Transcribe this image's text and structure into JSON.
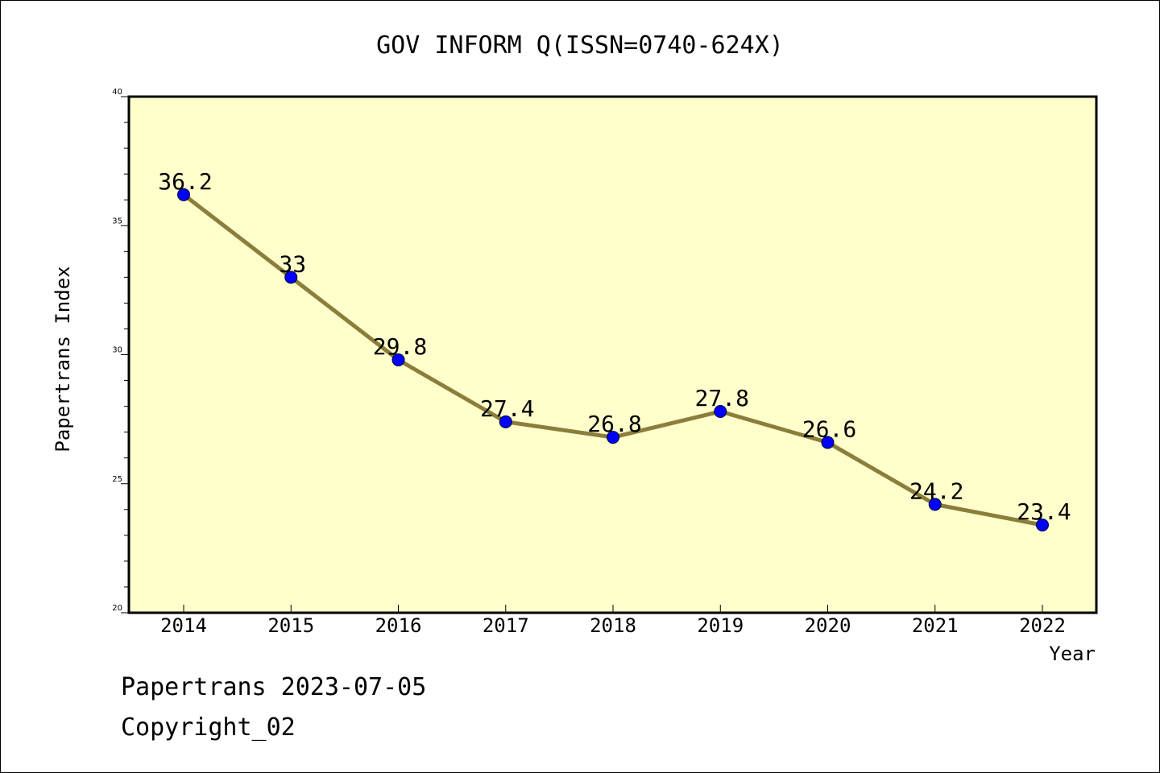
{
  "chart_data": {
    "type": "line",
    "title": "GOV INFORM Q(ISSN=0740-624X)",
    "xlabel": "Year",
    "ylabel": "Papertrans Index",
    "categories": [
      "2014",
      "2015",
      "2016",
      "2017",
      "2018",
      "2019",
      "2020",
      "2021",
      "2022"
    ],
    "series": [
      {
        "values": [
          36.2,
          33,
          29.8,
          27.4,
          26.8,
          27.8,
          26.6,
          24.2,
          23.4
        ],
        "data_labels": [
          "36.2",
          "33",
          "29.8",
          "27.4",
          "26.8",
          "27.8",
          "26.6",
          "24.2",
          "23.4"
        ]
      }
    ],
    "ylim": [
      20,
      40
    ],
    "y_ticks": [
      "20",
      "25",
      "30",
      "35",
      "40"
    ],
    "y_minor_step": 1,
    "grid": false,
    "colors": {
      "plot_background": "#ffffcc",
      "line": "#8b7d3a",
      "marker": "#0000ff"
    }
  },
  "footer": {
    "line1": "Papertrans 2023-07-05",
    "line2": "Copyright_02"
  }
}
